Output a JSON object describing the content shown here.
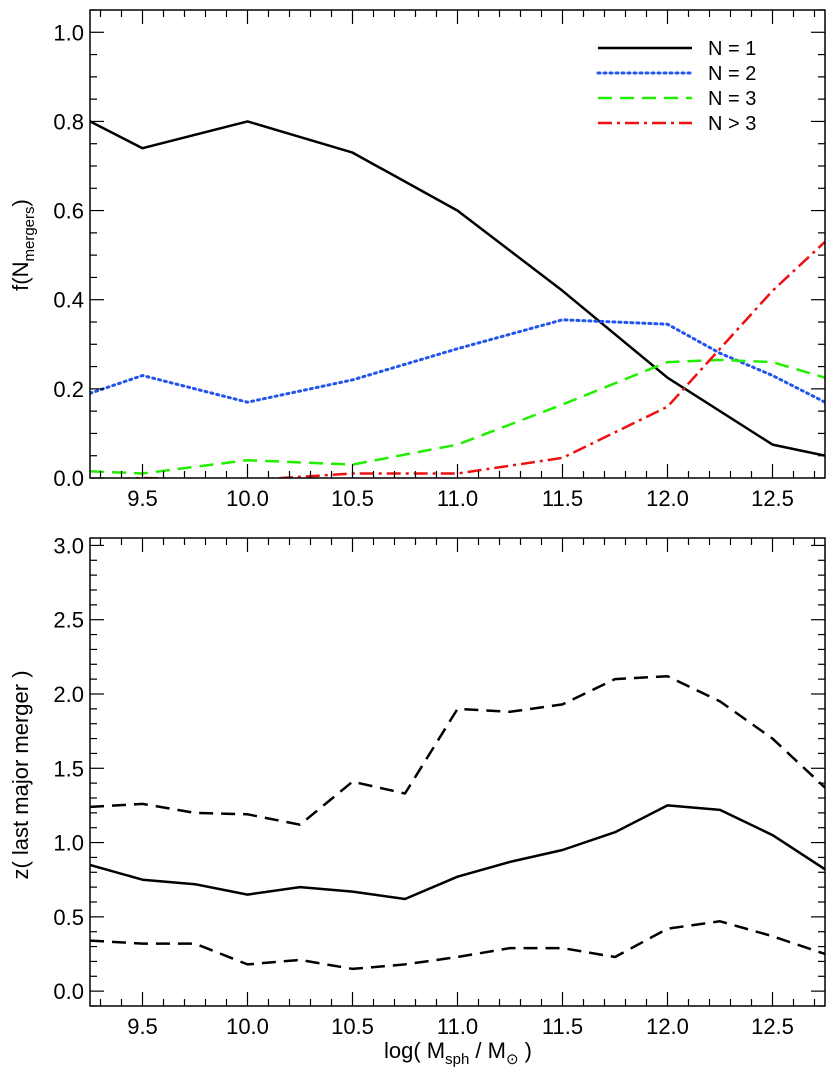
{
  "chart_data": [
    {
      "type": "line",
      "title": "",
      "xlabel": "",
      "ylabel": "f(N",
      "ylabel_sub": "mergers",
      "ylabel_close": ")",
      "xlim": [
        9.25,
        12.75
      ],
      "ylim": [
        0.0,
        1.05
      ],
      "x_ticks": [
        9.5,
        10.0,
        10.5,
        11.0,
        11.5,
        12.0,
        12.5
      ],
      "x_tick_labels": [
        "9.5",
        "10.0",
        "10.5",
        "11.0",
        "11.5",
        "12.0",
        "12.5"
      ],
      "y_ticks": [
        0.0,
        0.2,
        0.4,
        0.6,
        0.8,
        1.0
      ],
      "y_tick_labels": [
        "0.0",
        "0.2",
        "0.4",
        "0.6",
        "0.8",
        "1.0"
      ],
      "grid": false,
      "legend_position": "top-right",
      "series": [
        {
          "name": "N = 1",
          "color": "#000000",
          "dash": "solid",
          "x": [
            9.25,
            9.5,
            10.0,
            10.5,
            11.0,
            11.5,
            12.0,
            12.5,
            12.75
          ],
          "y": [
            0.8,
            0.74,
            0.8,
            0.73,
            0.6,
            0.42,
            0.225,
            0.075,
            0.05
          ]
        },
        {
          "name": "N = 2",
          "color": "#2255ee",
          "dash": "dotted",
          "x": [
            9.25,
            9.5,
            10.0,
            10.5,
            11.0,
            11.5,
            12.0,
            12.25,
            12.5,
            12.75
          ],
          "y": [
            0.19,
            0.23,
            0.17,
            0.22,
            0.29,
            0.355,
            0.345,
            0.28,
            0.23,
            0.17
          ]
        },
        {
          "name": "N = 3",
          "color": "#22ee00",
          "dash": "dashed",
          "x": [
            9.25,
            9.5,
            10.0,
            10.5,
            11.0,
            11.5,
            12.0,
            12.25,
            12.5,
            12.75
          ],
          "y": [
            0.015,
            0.01,
            0.04,
            0.03,
            0.075,
            0.165,
            0.26,
            0.265,
            0.26,
            0.225
          ]
        },
        {
          "name": "N > 3",
          "color": "#ee1111",
          "dash": "dashdot",
          "x": [
            9.25,
            9.5,
            10.0,
            10.5,
            11.0,
            11.5,
            12.0,
            12.5,
            12.75
          ],
          "y": [
            -0.005,
            0.0,
            -0.005,
            0.01,
            0.01,
            0.045,
            0.16,
            0.42,
            0.53
          ]
        }
      ]
    },
    {
      "type": "line",
      "title": "",
      "xlabel": "log( M",
      "xlabel_sub1": "sph",
      "xlabel_mid": " / M",
      "xlabel_sun": "⊙",
      "xlabel_close": " )",
      "ylabel": "z( last major merger )",
      "xlim": [
        9.25,
        12.75
      ],
      "ylim": [
        -0.1,
        3.05
      ],
      "x_ticks": [
        9.5,
        10.0,
        10.5,
        11.0,
        11.5,
        12.0,
        12.5
      ],
      "x_tick_labels": [
        "9.5",
        "10.0",
        "10.5",
        "11.0",
        "11.5",
        "12.0",
        "12.5"
      ],
      "y_ticks": [
        0.0,
        0.5,
        1.0,
        1.5,
        2.0,
        2.5,
        3.0
      ],
      "y_tick_labels": [
        "0.0",
        "0.5",
        "1.0",
        "1.5",
        "2.0",
        "2.5",
        "3.0"
      ],
      "grid": false,
      "series": [
        {
          "color": "#000000",
          "dash": "dashed",
          "x": [
            9.25,
            9.5,
            9.75,
            10.0,
            10.25,
            10.5,
            10.75,
            11.0,
            11.25,
            11.5,
            11.75,
            12.0,
            12.25,
            12.5,
            12.75
          ],
          "y": [
            1.24,
            1.26,
            1.2,
            1.19,
            1.12,
            1.41,
            1.33,
            1.9,
            1.88,
            1.93,
            2.1,
            2.12,
            1.95,
            1.7,
            1.37
          ]
        },
        {
          "color": "#000000",
          "dash": "solid",
          "x": [
            9.25,
            9.5,
            9.75,
            10.0,
            10.25,
            10.5,
            10.75,
            11.0,
            11.25,
            11.5,
            11.75,
            12.0,
            12.25,
            12.5,
            12.75
          ],
          "y": [
            0.85,
            0.75,
            0.72,
            0.65,
            0.7,
            0.67,
            0.62,
            0.77,
            0.87,
            0.95,
            1.07,
            1.25,
            1.22,
            1.05,
            0.82
          ]
        },
        {
          "color": "#000000",
          "dash": "dashed",
          "x": [
            9.25,
            9.5,
            9.75,
            10.0,
            10.25,
            10.5,
            10.75,
            11.0,
            11.25,
            11.5,
            11.75,
            12.0,
            12.25,
            12.5,
            12.75
          ],
          "y": [
            0.34,
            0.32,
            0.32,
            0.18,
            0.21,
            0.15,
            0.18,
            0.23,
            0.29,
            0.29,
            0.23,
            0.42,
            0.47,
            0.37,
            0.25
          ]
        }
      ]
    }
  ]
}
